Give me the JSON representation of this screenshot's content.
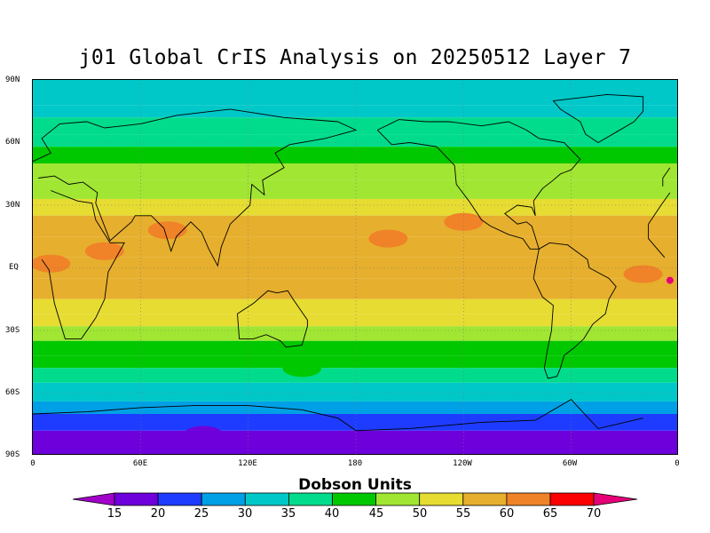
{
  "title": "j01 Global CrIS Analysis on 20250512 Layer 7",
  "colorbar": {
    "title": "Dobson Units",
    "ticks": [
      "15",
      "20",
      "25",
      "30",
      "35",
      "40",
      "45",
      "50",
      "55",
      "60",
      "65",
      "70"
    ],
    "colors": [
      "#a000c8",
      "#6e00dc",
      "#1e3cff",
      "#00a0e6",
      "#00c8c8",
      "#00dc8c",
      "#00c800",
      "#a0e632",
      "#e6dc32",
      "#e6af2d",
      "#f08228",
      "#fa0000",
      "#e60078"
    ]
  },
  "axes": {
    "lat_labels": [
      "90N",
      "60N",
      "30N",
      "EQ",
      "30S",
      "60S",
      "90S"
    ],
    "lon_labels": [
      "0",
      "60E",
      "120E",
      "180",
      "120W",
      "60W",
      "0"
    ]
  },
  "chart_data": {
    "type": "heatmap",
    "title": "j01 Global CrIS Analysis on 20250512 Layer 7",
    "xlabel": "",
    "ylabel": "",
    "xlim": [
      0,
      360
    ],
    "ylim": [
      -90,
      90
    ],
    "colorbar_label": "Dobson Units",
    "levels": [
      15,
      20,
      25,
      30,
      35,
      40,
      45,
      50,
      55,
      60,
      65,
      70
    ],
    "grid": "dotted",
    "zonal_profile": [
      {
        "lat": 90,
        "value": 32
      },
      {
        "lat": 78,
        "value": 32
      },
      {
        "lat": 72,
        "value": 36
      },
      {
        "lat": 64,
        "value": 38
      },
      {
        "lat": 58,
        "value": 42
      },
      {
        "lat": 50,
        "value": 45
      },
      {
        "lat": 42,
        "value": 48
      },
      {
        "lat": 33,
        "value": 52
      },
      {
        "lat": 25,
        "value": 56
      },
      {
        "lat": 15,
        "value": 57
      },
      {
        "lat": 5,
        "value": 57
      },
      {
        "lat": -5,
        "value": 56
      },
      {
        "lat": -15,
        "value": 54
      },
      {
        "lat": -22,
        "value": 52
      },
      {
        "lat": -28,
        "value": 48
      },
      {
        "lat": -35,
        "value": 43
      },
      {
        "lat": -42,
        "value": 41
      },
      {
        "lat": -48,
        "value": 37
      },
      {
        "lat": -55,
        "value": 34
      },
      {
        "lat": -60,
        "value": 31
      },
      {
        "lat": -64,
        "value": 27
      },
      {
        "lat": -70,
        "value": 23
      },
      {
        "lat": -78,
        "value": 19
      },
      {
        "lat": -90,
        "value": 18
      }
    ],
    "anomalies": [
      {
        "lon": 10,
        "lat": 2,
        "value": 62
      },
      {
        "lon": 40,
        "lat": 8,
        "value": 61
      },
      {
        "lon": 75,
        "lat": 18,
        "value": 60
      },
      {
        "lon": 198,
        "lat": 14,
        "value": 61
      },
      {
        "lon": 240,
        "lat": 22,
        "value": 61
      },
      {
        "lon": 340,
        "lat": -3,
        "value": 62
      },
      {
        "lon": 355,
        "lat": -6,
        "value": 70
      },
      {
        "lon": 150,
        "lat": -48,
        "value": 40
      },
      {
        "lon": 95,
        "lat": -80,
        "value": 15
      }
    ]
  }
}
